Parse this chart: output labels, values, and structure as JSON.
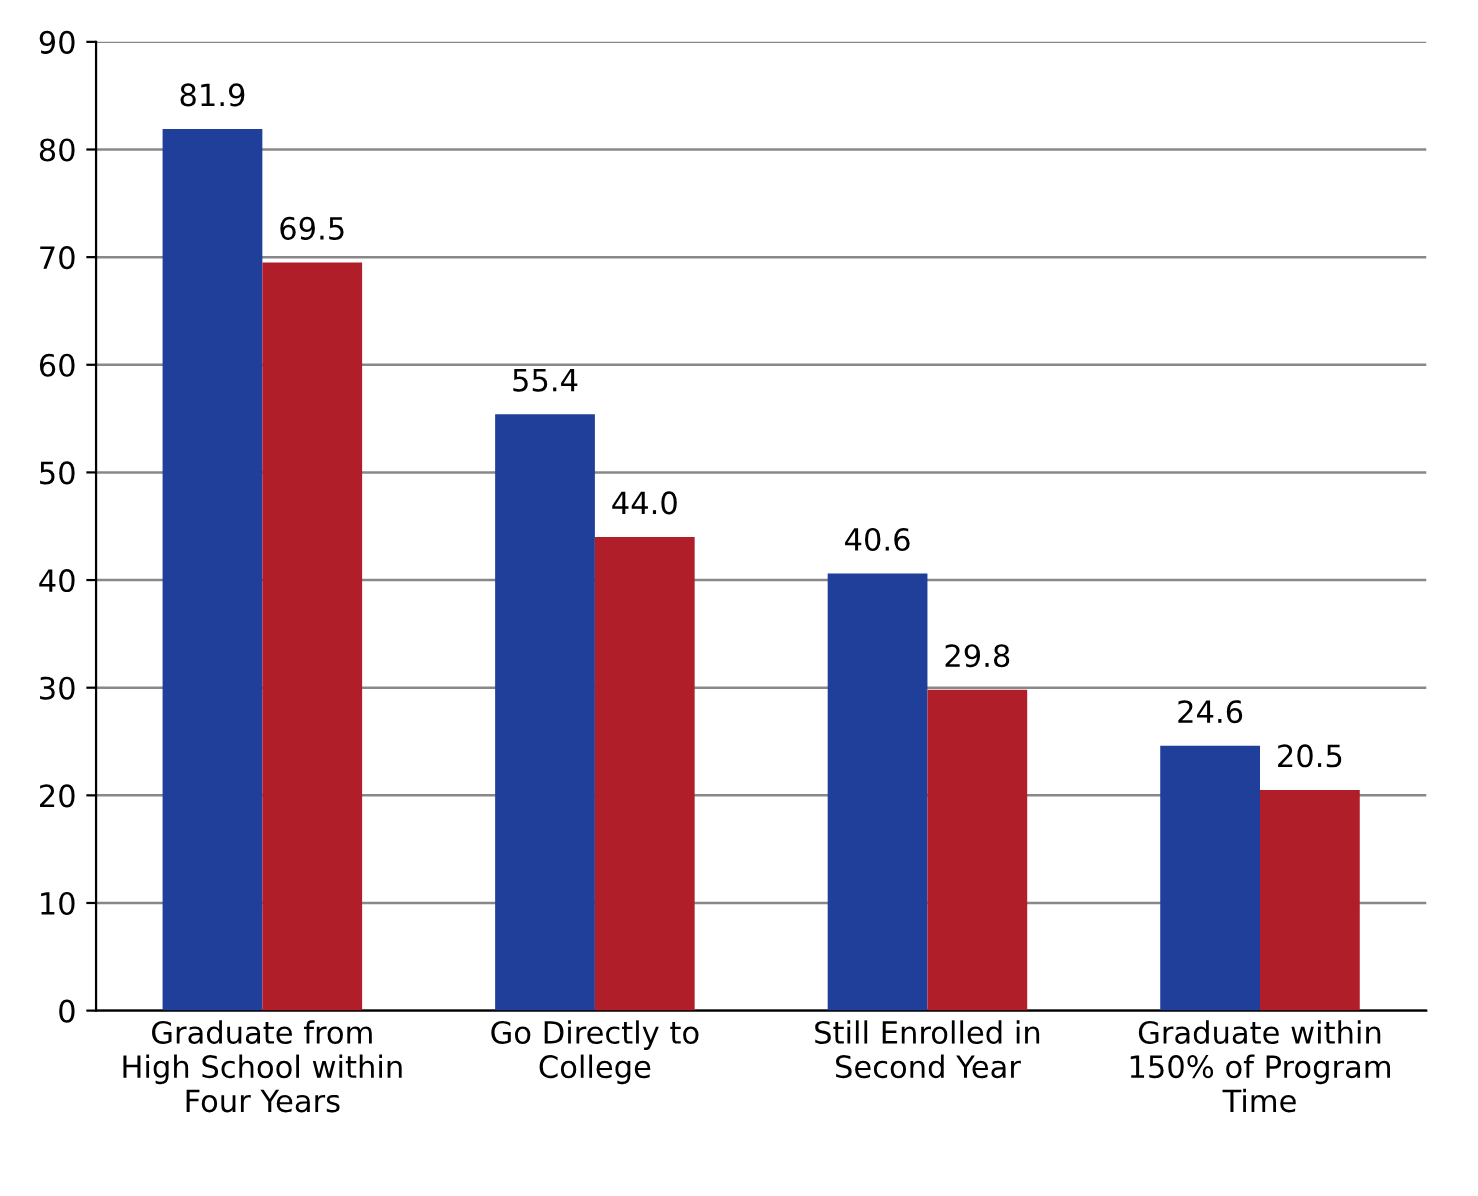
{
  "chart_data": {
    "type": "bar",
    "categories": [
      "Graduate from\nHigh School within\nFour Years",
      "Go Directly to\nCollege",
      "Still Enrolled in\nSecond Year",
      "Graduate within\n150% of Program\nTime"
    ],
    "series": [
      {
        "color": "#1f3f9a",
        "values": [
          81.9,
          55.4,
          40.6,
          24.6
        ],
        "value_labels": [
          "81.9",
          "55.4",
          "40.6",
          "24.6"
        ]
      },
      {
        "color": "#b01e2a",
        "values": [
          69.5,
          44.0,
          29.8,
          20.5
        ],
        "value_labels": [
          "69.5",
          "44.0",
          "29.8",
          "20.5"
        ]
      }
    ],
    "ylim": [
      0,
      90
    ],
    "yticks": [
      0,
      10,
      20,
      30,
      40,
      50,
      60,
      70,
      80,
      90
    ],
    "grid": "y",
    "legend": false
  }
}
